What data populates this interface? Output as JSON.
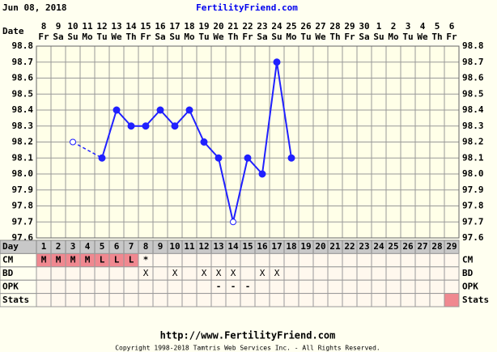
{
  "header": {
    "date": "Jun 08, 2018",
    "site": "FertilityFriend.com"
  },
  "chart_data": {
    "type": "line",
    "date_label": "Date",
    "day_label": "Day",
    "dates": [
      8,
      9,
      10,
      11,
      12,
      13,
      14,
      15,
      16,
      17,
      18,
      19,
      20,
      21,
      22,
      23,
      24,
      25,
      26,
      27,
      28,
      29,
      30,
      1,
      2,
      3,
      4,
      5,
      6
    ],
    "weekdays": [
      "Fr",
      "Sa",
      "Su",
      "Mo",
      "Tu",
      "We",
      "Th",
      "Fr",
      "Sa",
      "Su",
      "Mo",
      "Tu",
      "We",
      "Th",
      "Fr",
      "Sa",
      "Su",
      "Mo",
      "Tu",
      "We",
      "Th",
      "Fr",
      "Sa",
      "Su",
      "Mo",
      "Tu",
      "We",
      "Th",
      "Fr"
    ],
    "categories": [
      1,
      2,
      3,
      4,
      5,
      6,
      7,
      8,
      9,
      10,
      11,
      12,
      13,
      14,
      15,
      16,
      17,
      18,
      19,
      20,
      21,
      22,
      23,
      24,
      25,
      26,
      27,
      28,
      29
    ],
    "values": [
      null,
      null,
      98.2,
      null,
      98.1,
      98.4,
      98.3,
      98.3,
      98.4,
      98.3,
      98.4,
      98.2,
      98.1,
      97.7,
      98.1,
      98.0,
      98.7,
      98.1,
      null,
      null,
      null,
      null,
      null,
      null,
      null,
      null,
      null,
      null,
      null
    ],
    "hollow_days": [
      3,
      14
    ],
    "color": "#2020ff",
    "ylim": [
      97.6,
      98.8
    ],
    "yticks": [
      97.6,
      97.7,
      97.8,
      97.9,
      {
        "value": 98,
        "label": "98.0"
      },
      98.1,
      98.2,
      98.3,
      98.4,
      98.5,
      98.6,
      98.7,
      98.8
    ],
    "grid": true,
    "rows": [
      {
        "label": "CM",
        "cells": [
          "M",
          "M",
          "M",
          "M",
          "L",
          "L",
          "L",
          "*",
          null,
          null,
          null,
          null,
          null,
          null,
          null,
          null,
          null,
          null,
          null,
          null,
          null,
          null,
          null,
          null,
          null,
          null,
          null,
          null,
          null
        ],
        "highlight_days": [
          1,
          2,
          3,
          4,
          5,
          6,
          7
        ]
      },
      {
        "label": "BD",
        "cells": [
          null,
          null,
          null,
          null,
          null,
          null,
          null,
          "X",
          null,
          "X",
          null,
          "X",
          "X",
          "X",
          null,
          "X",
          "X",
          null,
          null,
          null,
          null,
          null,
          null,
          null,
          null,
          null,
          null,
          null,
          null
        ],
        "highlight_days": []
      },
      {
        "label": "OPK",
        "cells": [
          null,
          null,
          null,
          null,
          null,
          null,
          null,
          null,
          null,
          null,
          null,
          null,
          "-",
          "-",
          "-",
          null,
          null,
          null,
          null,
          null,
          null,
          null,
          null,
          null,
          null,
          null,
          null,
          null,
          null
        ],
        "highlight_days": []
      },
      {
        "label": "Stats",
        "cells": [
          null,
          null,
          null,
          null,
          null,
          null,
          null,
          null,
          null,
          null,
          null,
          null,
          null,
          null,
          null,
          null,
          null,
          null,
          null,
          null,
          null,
          null,
          null,
          null,
          null,
          null,
          null,
          null,
          null
        ],
        "highlight_days": [
          29
        ]
      }
    ]
  },
  "footer": {
    "url": "http://www.FertilityFriend.com",
    "copyright": "Copyright 1998-2018 Tamtris Web Services Inc. - All Rights Reserved."
  }
}
